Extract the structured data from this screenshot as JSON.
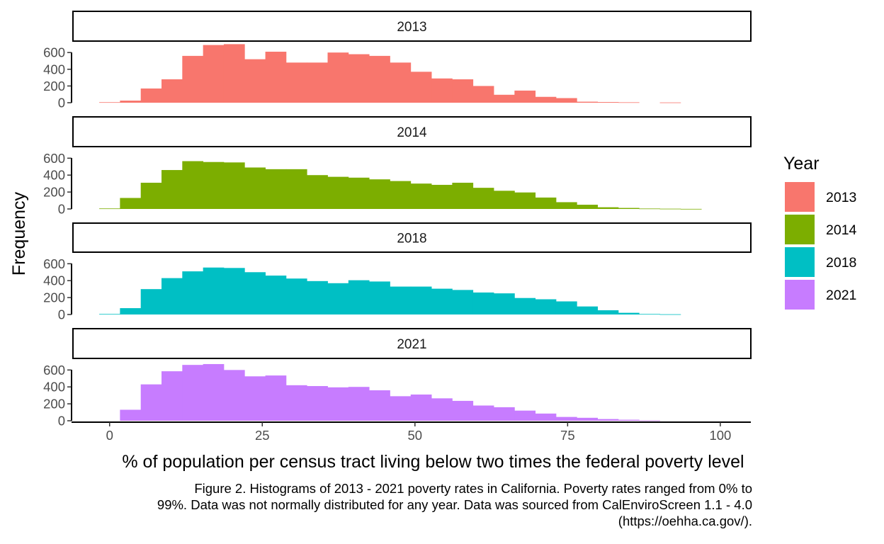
{
  "chart_data": {
    "type": "bar",
    "chart_subtype": "faceted histogram",
    "xlabel": "% of population per census tract living below two times the federal poverty level",
    "ylabel": "Frequency",
    "xlim": [
      -6,
      105
    ],
    "x_ticks": [
      0,
      25,
      50,
      75,
      100
    ],
    "ylim": [
      0,
      720
    ],
    "y_ticks": [
      0,
      200,
      400,
      600
    ],
    "bin_width": 3.4,
    "bin_start": -1.7,
    "grid": false,
    "legend": {
      "title": "Year",
      "placement": "right",
      "entries": [
        {
          "label": "2013",
          "color": "#F8766D"
        },
        {
          "label": "2014",
          "color": "#7CAE00"
        },
        {
          "label": "2018",
          "color": "#00BFC4"
        },
        {
          "label": "2021",
          "color": "#C77CFF"
        }
      ]
    },
    "series": [
      {
        "name": "2013",
        "color": "#F8766D",
        "values": [
          6,
          25,
          170,
          280,
          560,
          690,
          700,
          520,
          610,
          480,
          480,
          600,
          580,
          560,
          480,
          370,
          290,
          280,
          200,
          95,
          145,
          70,
          55,
          12,
          8,
          5,
          0,
          3,
          0
        ]
      },
      {
        "name": "2014",
        "color": "#7CAE00",
        "values": [
          6,
          130,
          310,
          460,
          565,
          555,
          550,
          490,
          470,
          470,
          400,
          380,
          370,
          350,
          330,
          300,
          285,
          310,
          250,
          215,
          195,
          135,
          80,
          50,
          20,
          12,
          5,
          3,
          1
        ]
      },
      {
        "name": "2018",
        "color": "#00BFC4",
        "values": [
          6,
          75,
          300,
          430,
          510,
          555,
          550,
          500,
          460,
          425,
          395,
          370,
          405,
          390,
          330,
          330,
          305,
          290,
          260,
          250,
          195,
          180,
          155,
          95,
          50,
          20,
          6,
          3,
          0
        ]
      },
      {
        "name": "2021",
        "color": "#C77CFF",
        "values": [
          0,
          130,
          430,
          585,
          660,
          670,
          600,
          525,
          535,
          420,
          410,
          395,
          400,
          360,
          290,
          310,
          265,
          235,
          180,
          160,
          120,
          85,
          45,
          35,
          20,
          12,
          4,
          0,
          0
        ]
      }
    ]
  },
  "caption": "Figure 2. Histograms of 2013 - 2021 poverty rates in California. Poverty rates ranged from 0% to\n99%. Data was not normally distributed for any year. Data was sourced from CalEnviroScreen 1.1 - 4.0\n(https://oehha.ca.gov/)."
}
